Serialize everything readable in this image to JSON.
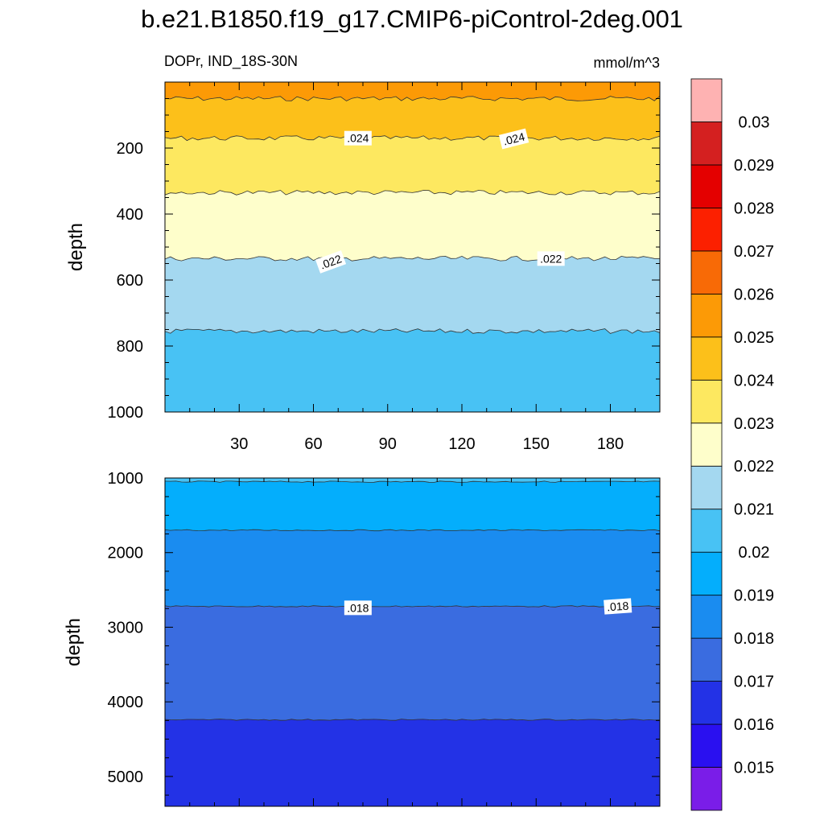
{
  "title": "b.e21.B1850.f19_g17.CMIP6-piControl-2deg.001",
  "chart_data": {
    "type": "contour",
    "subtitle_left": "DOPr, IND_18S-30N",
    "subtitle_right": "mmol/m^3",
    "ylabel": "depth",
    "colorbar": {
      "levels": [
        "0.015",
        "0.016",
        "0.017",
        "0.018",
        "0.019",
        "0.02",
        "0.021",
        "0.022",
        "0.023",
        "0.024",
        "0.025",
        "0.026",
        "0.027",
        "0.028",
        "0.029",
        "0.03"
      ],
      "colors": [
        "#7a1de8",
        "#2a10f0",
        "#2332e6",
        "#3a6ce0",
        "#1a8cf0",
        "#04aefc",
        "#48c2f4",
        "#a4d8f0",
        "#fefecb",
        "#fde860",
        "#fcc01a",
        "#fc9a06",
        "#f86a06",
        "#fc2000",
        "#e40000",
        "#d42020",
        "#feb2b2"
      ]
    },
    "panels": [
      {
        "name": "upper",
        "xlim": [
          0,
          200
        ],
        "ylim": [
          0,
          1000
        ],
        "x_ticks": [
          "30",
          "60",
          "90",
          "120",
          "150",
          "180"
        ],
        "y_ticks": [
          "200",
          "400",
          "600",
          "800",
          "1000"
        ],
        "bands": [
          {
            "from": 0,
            "to": 50,
            "color": "#fc9a06"
          },
          {
            "from": 50,
            "to": 170,
            "color": "#fcc01a"
          },
          {
            "from": 170,
            "to": 335,
            "color": "#fde860"
          },
          {
            "from": 335,
            "to": 535,
            "color": "#fefecb"
          },
          {
            "from": 535,
            "to": 755,
            "color": "#a4d8f0"
          },
          {
            "from": 755,
            "to": 1000,
            "color": "#48c2f4"
          }
        ],
        "contour_labels": [
          {
            "text": ".024",
            "x": 78,
            "y": 170,
            "angle": 0
          },
          {
            "text": ".024",
            "x": 141,
            "y": 172,
            "angle": -14
          },
          {
            "text": ".022",
            "x": 67,
            "y": 545,
            "angle": -20
          },
          {
            "text": ".022",
            "x": 156,
            "y": 535,
            "angle": 0
          }
        ]
      },
      {
        "name": "lower",
        "xlim": [
          0,
          200
        ],
        "ylim": [
          1000,
          5400
        ],
        "x_ticks": [],
        "y_ticks": [
          "1000",
          "2000",
          "3000",
          "4000",
          "5000"
        ],
        "bands": [
          {
            "from": 1000,
            "to": 1050,
            "color": "#48c2f4"
          },
          {
            "from": 1050,
            "to": 1700,
            "color": "#04aefc"
          },
          {
            "from": 1700,
            "to": 2720,
            "color": "#1a8cf0"
          },
          {
            "from": 2720,
            "to": 4240,
            "color": "#3a6ce0"
          },
          {
            "from": 4240,
            "to": 5400,
            "color": "#2332e6"
          }
        ],
        "contour_labels": [
          {
            "text": ".018",
            "x": 78,
            "y": 2740,
            "angle": 0
          },
          {
            "text": ".018",
            "x": 183,
            "y": 2720,
            "angle": -4
          }
        ]
      }
    ]
  }
}
